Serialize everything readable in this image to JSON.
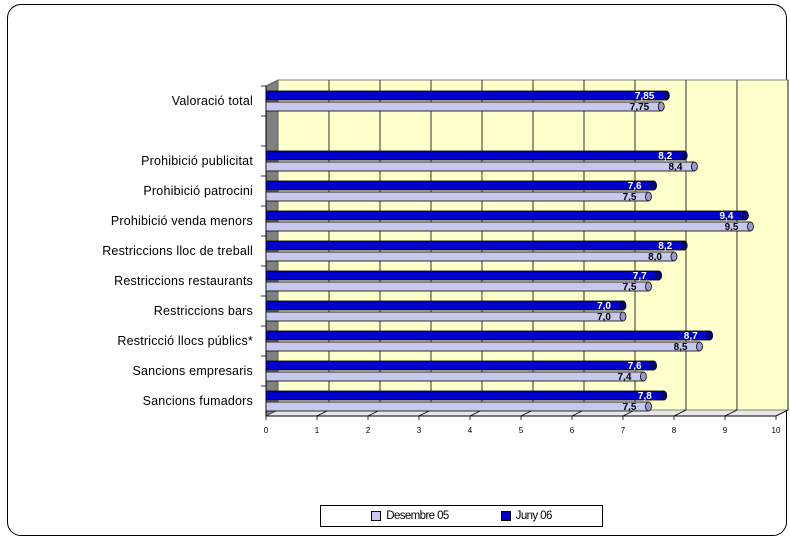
{
  "chart_data": {
    "type": "bar",
    "orientation": "horizontal",
    "categories": [
      "Valoració total",
      "",
      "Prohibició publicitat",
      "Prohibició patrocini",
      "Prohibició venda menors",
      "Restriccions lloc de treball",
      "Restriccions restaurants",
      "Restriccions bars",
      "Restricció llocs públics*",
      "Sancions empresaris",
      "Sancions fumadors"
    ],
    "series": [
      {
        "name": "Juny 06",
        "color": "#0000cc",
        "label_color": "#ffffff",
        "values": [
          7.85,
          null,
          8.2,
          7.6,
          9.4,
          8.2,
          7.7,
          7.0,
          8.7,
          7.6,
          7.8
        ],
        "labels": [
          "7,85",
          "",
          "8,2",
          "7,6",
          "9,4",
          "8,2",
          "7,7",
          "7,0",
          "8,7",
          "7,6",
          "7,8"
        ]
      },
      {
        "name": "Desembre 05",
        "color": "#c8c8ec",
        "label_color": "#000000",
        "values": [
          7.75,
          null,
          8.4,
          7.5,
          9.5,
          8.0,
          7.5,
          7.0,
          8.5,
          7.4,
          7.5
        ],
        "labels": [
          "7,75",
          "",
          "8,4",
          "7,5",
          "9,5",
          "8,0",
          "7,5",
          "7,0",
          "8,5",
          "7,4",
          "7,5"
        ]
      }
    ],
    "xlim": [
      0,
      10
    ],
    "ticks": [
      "0",
      "1",
      "2",
      "3",
      "4",
      "5",
      "6",
      "7",
      "8",
      "9",
      "10"
    ],
    "grid": true,
    "legend_position": "bottom",
    "plot_background": "#ffffcc"
  },
  "legend": {
    "items": [
      {
        "label": "Desembre 05",
        "color": "#c8c8ec"
      },
      {
        "label": "Juny 06",
        "color": "#0000cc"
      }
    ]
  }
}
